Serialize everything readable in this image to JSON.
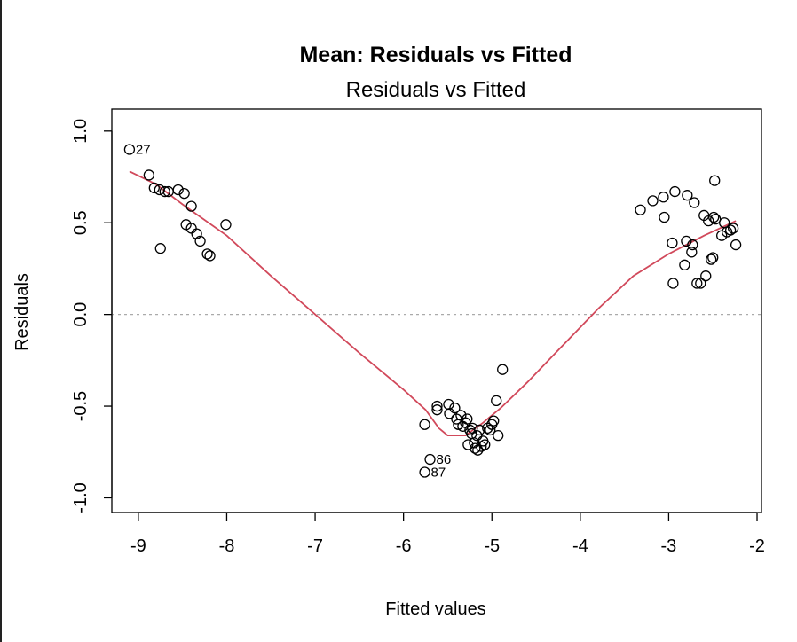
{
  "chart_data": {
    "type": "scatter",
    "title": "Mean: Residuals vs Fitted",
    "subtitle": "Residuals vs Fitted",
    "xlabel": "Fitted values",
    "ylabel": "Residuals",
    "xlim": [
      -9.3,
      -1.95
    ],
    "ylim": [
      -1.08,
      1.12
    ],
    "xticks": [
      {
        "value": -9,
        "label": "-9"
      },
      {
        "value": -8,
        "label": "-8"
      },
      {
        "value": -7,
        "label": "-7"
      },
      {
        "value": -6,
        "label": "-6"
      },
      {
        "value": -5,
        "label": "-5"
      },
      {
        "value": -4,
        "label": "-4"
      },
      {
        "value": -3,
        "label": "-3"
      },
      {
        "value": -2,
        "label": "-2"
      }
    ],
    "yticks": [
      {
        "value": -1.0,
        "label": "-1.0"
      },
      {
        "value": -0.5,
        "label": "-0.5"
      },
      {
        "value": 0.0,
        "label": "0.0"
      },
      {
        "value": 0.5,
        "label": "0.5"
      },
      {
        "value": 1.0,
        "label": "1.0"
      }
    ],
    "reference_line": {
      "y": 0,
      "color": "#aaaaaa"
    },
    "grid": false,
    "point_color": "#000000",
    "smooth_color": "#d1495b",
    "points": [
      {
        "x": -9.1,
        "y": 0.9,
        "label": "27"
      },
      {
        "x": -8.88,
        "y": 0.76
      },
      {
        "x": -8.82,
        "y": 0.69
      },
      {
        "x": -8.76,
        "y": 0.68
      },
      {
        "x": -8.7,
        "y": 0.67
      },
      {
        "x": -8.66,
        "y": 0.67
      },
      {
        "x": -8.55,
        "y": 0.68
      },
      {
        "x": -8.48,
        "y": 0.66
      },
      {
        "x": -8.4,
        "y": 0.59
      },
      {
        "x": -8.46,
        "y": 0.49
      },
      {
        "x": -8.4,
        "y": 0.47
      },
      {
        "x": -8.34,
        "y": 0.44
      },
      {
        "x": -8.3,
        "y": 0.4
      },
      {
        "x": -8.22,
        "y": 0.33
      },
      {
        "x": -8.19,
        "y": 0.32
      },
      {
        "x": -8.75,
        "y": 0.36
      },
      {
        "x": -8.01,
        "y": 0.49
      },
      {
        "x": -5.76,
        "y": -0.6
      },
      {
        "x": -5.7,
        "y": -0.79,
        "label": "86"
      },
      {
        "x": -5.76,
        "y": -0.86,
        "label": "87"
      },
      {
        "x": -5.62,
        "y": -0.52
      },
      {
        "x": -5.62,
        "y": -0.5
      },
      {
        "x": -5.49,
        "y": -0.49
      },
      {
        "x": -5.48,
        "y": -0.54
      },
      {
        "x": -5.42,
        "y": -0.51
      },
      {
        "x": -5.4,
        "y": -0.57
      },
      {
        "x": -5.38,
        "y": -0.6
      },
      {
        "x": -5.35,
        "y": -0.55
      },
      {
        "x": -5.33,
        "y": -0.61
      },
      {
        "x": -5.3,
        "y": -0.59
      },
      {
        "x": -5.28,
        "y": -0.57
      },
      {
        "x": -5.25,
        "y": -0.63
      },
      {
        "x": -5.23,
        "y": -0.65
      },
      {
        "x": -5.22,
        "y": -0.62
      },
      {
        "x": -5.2,
        "y": -0.7
      },
      {
        "x": -5.19,
        "y": -0.73
      },
      {
        "x": -5.17,
        "y": -0.66
      },
      {
        "x": -5.16,
        "y": -0.74
      },
      {
        "x": -5.14,
        "y": -0.63
      },
      {
        "x": -5.12,
        "y": -0.72
      },
      {
        "x": -5.1,
        "y": -0.69
      },
      {
        "x": -5.08,
        "y": -0.71
      },
      {
        "x": -5.05,
        "y": -0.62
      },
      {
        "x": -5.02,
        "y": -0.63
      },
      {
        "x": -5.0,
        "y": -0.6
      },
      {
        "x": -4.98,
        "y": -0.58
      },
      {
        "x": -4.95,
        "y": -0.47
      },
      {
        "x": -4.93,
        "y": -0.66
      },
      {
        "x": -4.88,
        "y": -0.3
      },
      {
        "x": -5.27,
        "y": -0.71
      },
      {
        "x": -3.32,
        "y": 0.57
      },
      {
        "x": -3.18,
        "y": 0.62
      },
      {
        "x": -3.06,
        "y": 0.64
      },
      {
        "x": -3.05,
        "y": 0.53
      },
      {
        "x": -2.93,
        "y": 0.67
      },
      {
        "x": -2.96,
        "y": 0.39
      },
      {
        "x": -2.95,
        "y": 0.17
      },
      {
        "x": -2.82,
        "y": 0.27
      },
      {
        "x": -2.8,
        "y": 0.4
      },
      {
        "x": -2.79,
        "y": 0.65
      },
      {
        "x": -2.74,
        "y": 0.34
      },
      {
        "x": -2.73,
        "y": 0.38
      },
      {
        "x": -2.71,
        "y": 0.61
      },
      {
        "x": -2.68,
        "y": 0.17
      },
      {
        "x": -2.64,
        "y": 0.17
      },
      {
        "x": -2.6,
        "y": 0.54
      },
      {
        "x": -2.58,
        "y": 0.21
      },
      {
        "x": -2.55,
        "y": 0.51
      },
      {
        "x": -2.52,
        "y": 0.3
      },
      {
        "x": -2.5,
        "y": 0.31
      },
      {
        "x": -2.49,
        "y": 0.53
      },
      {
        "x": -2.47,
        "y": 0.52
      },
      {
        "x": -2.48,
        "y": 0.73
      },
      {
        "x": -2.4,
        "y": 0.43
      },
      {
        "x": -2.37,
        "y": 0.5
      },
      {
        "x": -2.34,
        "y": 0.45
      },
      {
        "x": -2.3,
        "y": 0.46
      },
      {
        "x": -2.27,
        "y": 0.47
      },
      {
        "x": -2.24,
        "y": 0.38
      }
    ],
    "smooth": [
      {
        "x": -9.1,
        "y": 0.78
      },
      {
        "x": -8.8,
        "y": 0.71
      },
      {
        "x": -8.5,
        "y": 0.6
      },
      {
        "x": -8.0,
        "y": 0.43
      },
      {
        "x": -7.5,
        "y": 0.21
      },
      {
        "x": -7.0,
        "y": 0.0
      },
      {
        "x": -6.5,
        "y": -0.21
      },
      {
        "x": -6.0,
        "y": -0.41
      },
      {
        "x": -5.75,
        "y": -0.52
      },
      {
        "x": -5.6,
        "y": -0.62
      },
      {
        "x": -5.5,
        "y": -0.66
      },
      {
        "x": -5.3,
        "y": -0.66
      },
      {
        "x": -5.1,
        "y": -0.59
      },
      {
        "x": -4.9,
        "y": -0.51
      },
      {
        "x": -4.6,
        "y": -0.37
      },
      {
        "x": -4.2,
        "y": -0.17
      },
      {
        "x": -3.8,
        "y": 0.03
      },
      {
        "x": -3.4,
        "y": 0.21
      },
      {
        "x": -3.0,
        "y": 0.33
      },
      {
        "x": -2.6,
        "y": 0.43
      },
      {
        "x": -2.24,
        "y": 0.51
      }
    ]
  }
}
